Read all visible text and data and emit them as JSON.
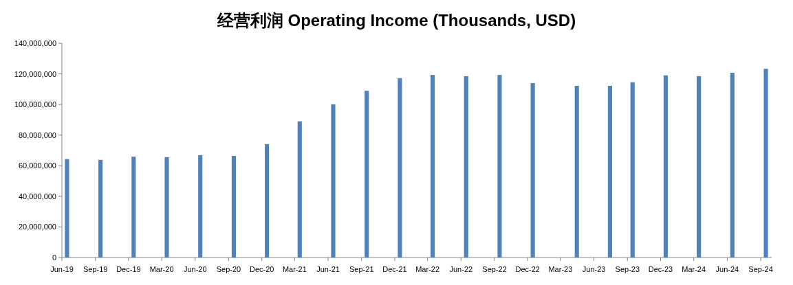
{
  "chart_data": {
    "type": "bar",
    "title": "经营利润 Operating Income (Thousands, USD)",
    "x": [
      "2019-06-15",
      "2019-09-15",
      "2019-12-15",
      "2020-03-15",
      "2020-06-15",
      "2020-09-15",
      "2020-12-15",
      "2021-03-15",
      "2021-06-15",
      "2021-09-15",
      "2021-12-15",
      "2022-03-15",
      "2022-06-15",
      "2022-09-15",
      "2022-12-15",
      "2023-04-15",
      "2023-07-15",
      "2023-09-15",
      "2023-12-15",
      "2024-03-15",
      "2024-06-15",
      "2024-09-15"
    ],
    "values": [
      64300000,
      63800000,
      65900000,
      65600000,
      66900000,
      66400000,
      74100000,
      89000000,
      100100000,
      109000000,
      117200000,
      119300000,
      118500000,
      119300000,
      114000000,
      112200000,
      112200000,
      114500000,
      119000000,
      118500000,
      120700000,
      123300000
    ],
    "color": "#4f81bd",
    "xlim": [
      "2019-06",
      "2024-10"
    ],
    "xticks": [
      {
        "value": "2019-06",
        "label": "Jun-19"
      },
      {
        "value": "2019-09",
        "label": "Sep-19"
      },
      {
        "value": "2019-12",
        "label": "Dec-19"
      },
      {
        "value": "2020-03",
        "label": "Mar-20"
      },
      {
        "value": "2020-06",
        "label": "Jun-20"
      },
      {
        "value": "2020-09",
        "label": "Sep-20"
      },
      {
        "value": "2020-12",
        "label": "Dec-20"
      },
      {
        "value": "2021-03",
        "label": "Mar-21"
      },
      {
        "value": "2021-06",
        "label": "Jun-21"
      },
      {
        "value": "2021-09",
        "label": "Sep-21"
      },
      {
        "value": "2021-12",
        "label": "Dec-21"
      },
      {
        "value": "2022-03",
        "label": "Mar-22"
      },
      {
        "value": "2022-06",
        "label": "Jun-22"
      },
      {
        "value": "2022-09",
        "label": "Sep-22"
      },
      {
        "value": "2022-12",
        "label": "Dec-22"
      },
      {
        "value": "2023-03",
        "label": "Mar-23"
      },
      {
        "value": "2023-06",
        "label": "Jun-23"
      },
      {
        "value": "2023-09",
        "label": "Sep-23"
      },
      {
        "value": "2023-12",
        "label": "Dec-23"
      },
      {
        "value": "2024-03",
        "label": "Mar-24"
      },
      {
        "value": "2024-06",
        "label": "Jun-24"
      },
      {
        "value": "2024-09",
        "label": "Sep-24"
      }
    ],
    "ylim": [
      0,
      140000000
    ],
    "yticks": [
      {
        "value": 0,
        "label": "0"
      },
      {
        "value": 20000000,
        "label": "20,000,000"
      },
      {
        "value": 40000000,
        "label": "40,000,000"
      },
      {
        "value": 60000000,
        "label": "60,000,000"
      },
      {
        "value": 80000000,
        "label": "80,000,000"
      },
      {
        "value": 100000000,
        "label": "100,000,000"
      },
      {
        "value": 120000000,
        "label": "120,000,000"
      },
      {
        "value": 140000000,
        "label": "140,000,000"
      }
    ]
  }
}
